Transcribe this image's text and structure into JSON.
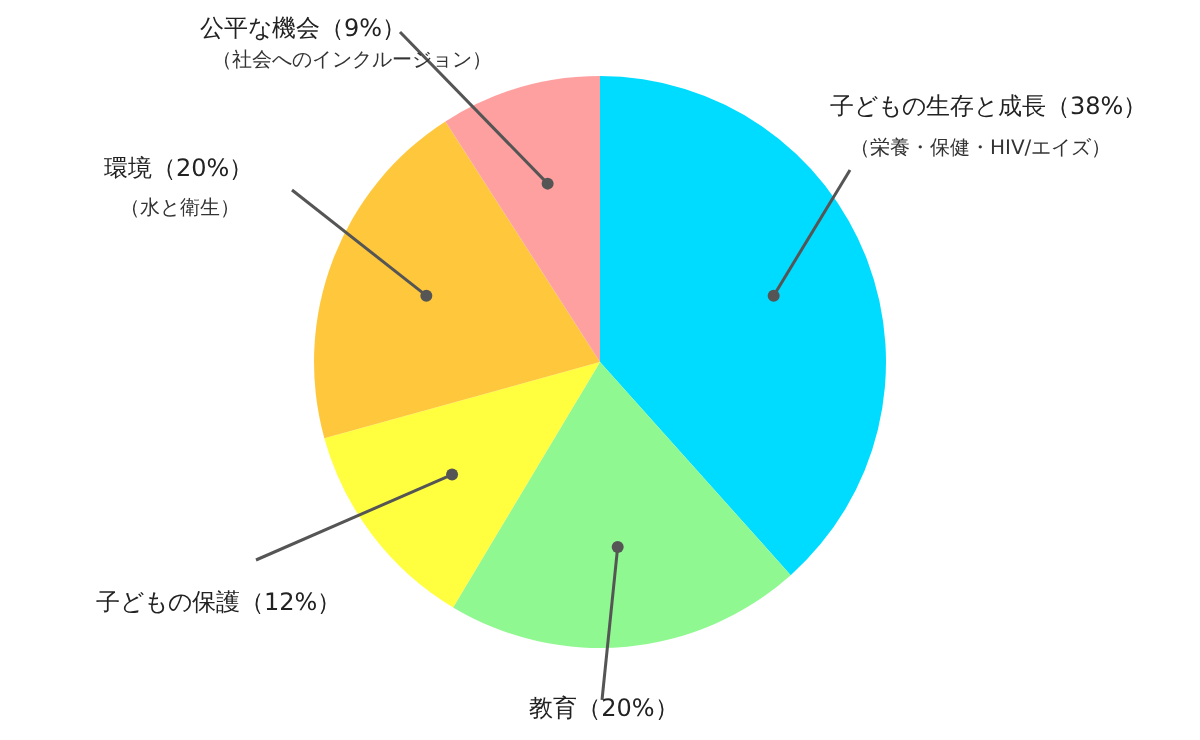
{
  "chart_data": {
    "type": "pie",
    "categories": [
      "子どもの生存と成長",
      "教育",
      "子どもの保護",
      "環境",
      "公平な機会"
    ],
    "values": [
      38,
      20,
      12,
      20,
      9
    ],
    "value_labels": [
      "（38%）",
      "（20%）",
      "（12%）",
      "（20%）",
      "（9%）"
    ],
    "colors": [
      "#00dcff",
      "#90f890",
      "#ffff40",
      "#ffc83c",
      "#ffa0a0"
    ],
    "annotations": [
      {
        "text": "（栄養・保健・HIV/エイズ）",
        "x": "子どもの生存と成長"
      },
      {
        "text": "（水と衛生）",
        "x": "環境"
      },
      {
        "text": "（社会へのインクルージョン）",
        "x": "公平な機会"
      }
    ]
  }
}
